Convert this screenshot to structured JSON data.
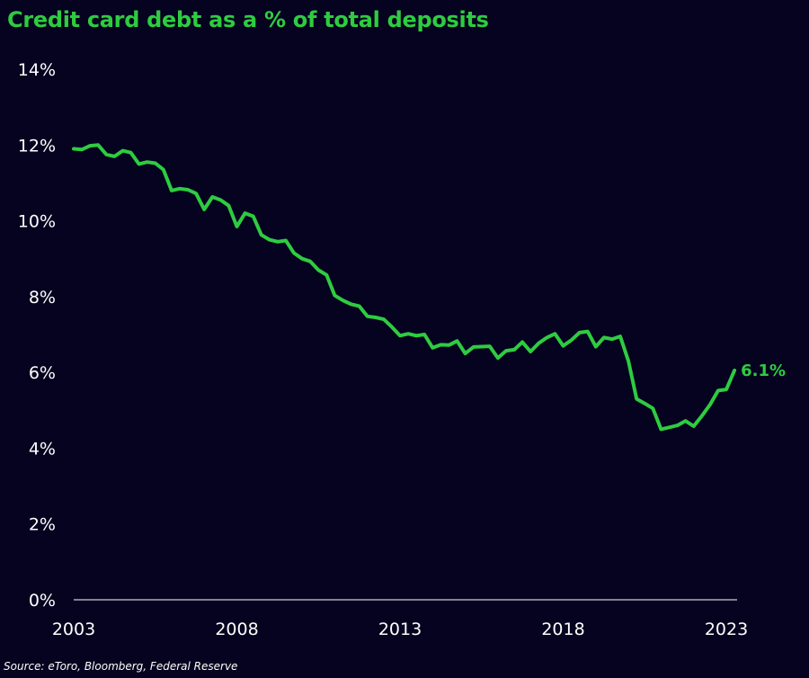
{
  "colors": {
    "background": "#05031f",
    "line": "#2ecc40",
    "text": "#ffffff",
    "axis": "#ffffff"
  },
  "chart_data": {
    "type": "line",
    "title": "Credit card debt as a % of total deposits",
    "xlabel": "",
    "ylabel": "",
    "xlim": [
      2003,
      2023.33
    ],
    "ylim": [
      0,
      14
    ],
    "x_ticks": [
      2003,
      2008,
      2013,
      2018,
      2023
    ],
    "x_tick_labels": [
      "2003",
      "2008",
      "2013",
      "2018",
      "2023"
    ],
    "y_ticks": [
      0,
      2,
      4,
      6,
      8,
      10,
      12,
      14
    ],
    "y_tick_labels": [
      "0%",
      "2%",
      "4%",
      "6%",
      "8%",
      "10%",
      "12%",
      "14%"
    ],
    "grid": false,
    "end_label": "6.1%",
    "source": "Source: eToro, Bloomberg, Federal Reserve",
    "series": [
      {
        "x": [
          2003.0,
          2003.25,
          2003.5,
          2003.75,
          2004.0,
          2004.25,
          2004.5,
          2004.75,
          2005.0,
          2005.25,
          2005.5,
          2005.75,
          2006.0,
          2006.25,
          2006.5,
          2006.75,
          2007.0,
          2007.25,
          2007.5,
          2007.75,
          2008.0,
          2008.25,
          2008.5,
          2008.75,
          2009.0,
          2009.25,
          2009.5,
          2009.75,
          2010.0,
          2010.25,
          2010.5,
          2010.75,
          2011.0,
          2011.25,
          2011.5,
          2011.75,
          2012.0,
          2012.25,
          2012.5,
          2012.75,
          2013.0,
          2013.25,
          2013.5,
          2013.75,
          2014.0,
          2014.25,
          2014.5,
          2014.75,
          2015.0,
          2015.25,
          2015.5,
          2015.75,
          2016.0,
          2016.25,
          2016.5,
          2016.75,
          2017.0,
          2017.25,
          2017.5,
          2017.75,
          2018.0,
          2018.25,
          2018.5,
          2018.75,
          2019.0,
          2019.25,
          2019.5,
          2019.75,
          2020.0,
          2020.25,
          2020.5,
          2020.75,
          2021.0,
          2021.25,
          2021.5,
          2021.75,
          2022.0,
          2022.25,
          2022.5,
          2022.75,
          2023.0,
          2023.25
        ],
        "values": [
          11.9,
          11.88,
          11.98,
          12.0,
          11.75,
          11.7,
          11.85,
          11.8,
          11.5,
          11.55,
          11.52,
          11.35,
          10.8,
          10.85,
          10.82,
          10.72,
          10.3,
          10.63,
          10.55,
          10.4,
          9.85,
          10.2,
          10.12,
          9.63,
          9.5,
          9.45,
          9.48,
          9.15,
          9.0,
          8.93,
          8.7,
          8.57,
          8.03,
          7.9,
          7.8,
          7.75,
          7.48,
          7.45,
          7.4,
          7.2,
          6.97,
          7.02,
          6.97,
          7.0,
          6.65,
          6.73,
          6.72,
          6.83,
          6.5,
          6.67,
          6.68,
          6.69,
          6.38,
          6.57,
          6.6,
          6.8,
          6.55,
          6.77,
          6.92,
          7.02,
          6.7,
          6.85,
          7.05,
          7.08,
          6.68,
          6.92,
          6.88,
          6.95,
          6.3,
          5.3,
          5.18,
          5.05,
          4.5,
          4.55,
          4.6,
          4.72,
          4.58,
          4.85,
          5.15,
          5.52,
          5.55,
          6.05
        ]
      }
    ]
  }
}
